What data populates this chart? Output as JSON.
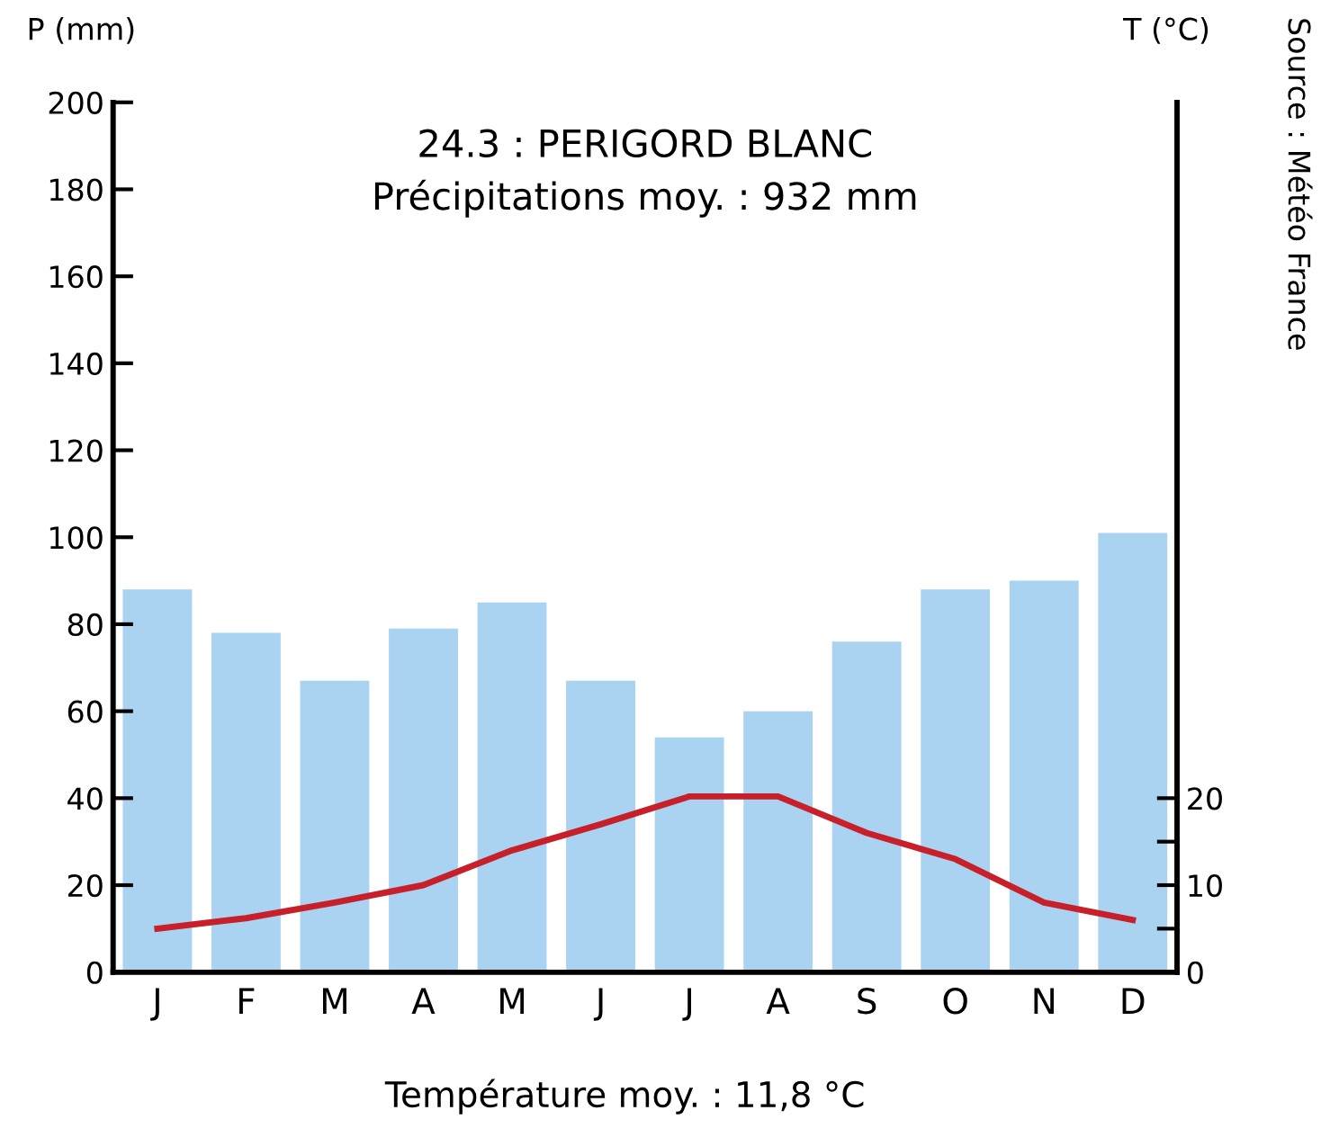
{
  "chart_data": {
    "type": "bar",
    "title": "24.3 : PERIGORD BLANC\nPrécipitations moy. : 932 mm",
    "ylabel": "P (mm)",
    "y2label": "T (°C)",
    "categories": [
      "J",
      "F",
      "M",
      "A",
      "M",
      "J",
      "J",
      "A",
      "S",
      "O",
      "N",
      "D"
    ],
    "series": [
      {
        "color": "#a9d3f0",
        "values": [
          88,
          78,
          67,
          79,
          85,
          67,
          54,
          60,
          76,
          88,
          90,
          101
        ]
      },
      {
        "type": "line",
        "axis": "y2",
        "color": "#c8202a",
        "marker": "none",
        "line_style": "solid",
        "values": [
          5,
          6.2,
          8,
          10,
          14,
          17,
          20.2,
          20.2,
          16,
          13,
          8,
          6
        ]
      }
    ],
    "ylim": [
      0,
      200
    ],
    "yticks": [
      0,
      20,
      40,
      60,
      80,
      100,
      120,
      140,
      160,
      180,
      200
    ],
    "y2lim": [
      0,
      100
    ],
    "y2ticks": [
      0,
      {
        "value": 5,
        "label": null
      },
      10,
      {
        "value": 15,
        "label": null
      },
      20
    ],
    "grid": false,
    "legend": false,
    "annotations": [
      "Température moy. : 11,8 °C",
      "Source : Météo France"
    ]
  }
}
